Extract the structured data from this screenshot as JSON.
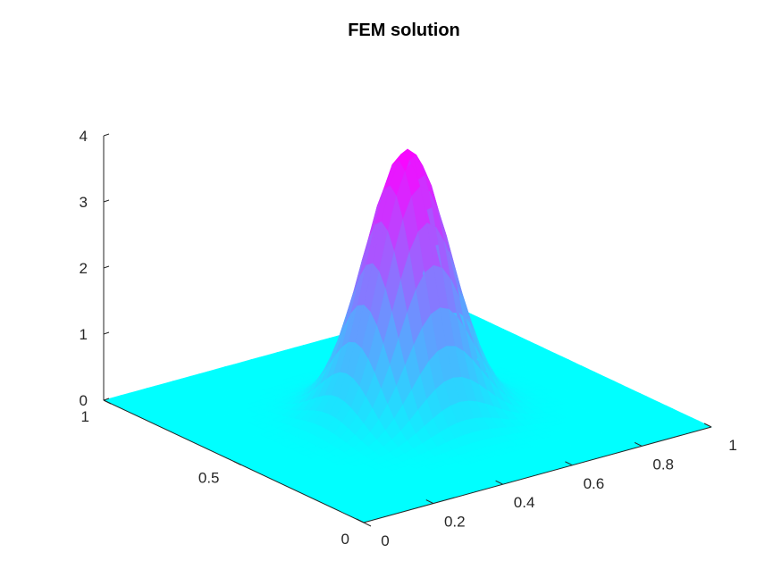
{
  "chart_data": {
    "type": "surface",
    "title": "FEM solution",
    "xlabel": "",
    "ylabel": "",
    "zlabel": "",
    "xlim": [
      0,
      1
    ],
    "ylim": [
      0,
      1
    ],
    "zlim": [
      0,
      4
    ],
    "x_ticks": [
      "0",
      "0.2",
      "0.4",
      "0.6",
      "0.8",
      "1"
    ],
    "y_ticks": [
      "0",
      "0.5",
      "1"
    ],
    "z_ticks": [
      "0",
      "1",
      "2",
      "3",
      "4"
    ],
    "grid": false,
    "colormap": "cool",
    "colors": {
      "low": "#00ffff",
      "high": "#ff00ff",
      "axis": "#262626"
    },
    "peak": {
      "x": 0.5,
      "y": 0.5,
      "z": 4.0
    },
    "function": "approximately 4*exp(-((x-0.5)^2+(y-0.5)^2)/0.02) on a uniform mesh"
  }
}
